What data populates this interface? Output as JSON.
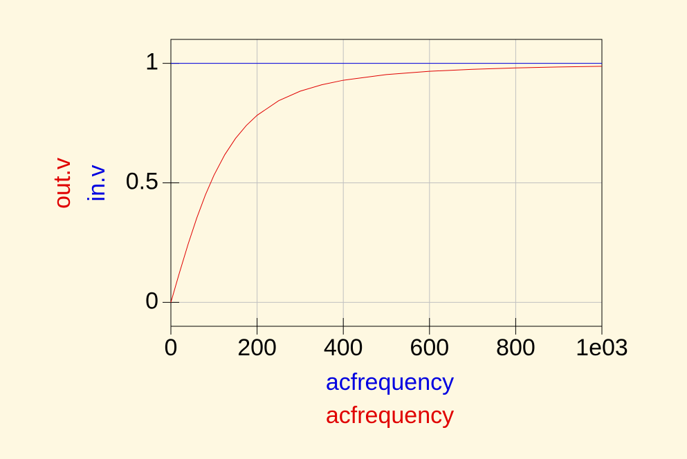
{
  "chart_data": {
    "type": "line",
    "x": [
      0,
      10,
      20,
      40,
      60,
      80,
      100,
      125,
      150,
      175,
      200,
      250,
      300,
      350,
      400,
      500,
      600,
      700,
      800,
      900,
      1000
    ],
    "series": [
      {
        "name": "out.v",
        "color": "#e00000",
        "x_label": "acfrequency",
        "values": [
          0,
          0.0627,
          0.1247,
          0.2438,
          0.3528,
          0.4491,
          0.532,
          0.6177,
          0.6859,
          0.7398,
          0.7825,
          0.8436,
          0.8834,
          0.9103,
          0.9292,
          0.9529,
          0.9666,
          0.9751,
          0.9808,
          0.9847,
          0.9876
        ]
      },
      {
        "name": "in.v",
        "color": "#0000e0",
        "x_label": "acfrequency",
        "values": [
          1,
          1,
          1,
          1,
          1,
          1,
          1,
          1,
          1,
          1,
          1,
          1,
          1,
          1,
          1,
          1,
          1,
          1,
          1,
          1,
          1
        ]
      }
    ],
    "xlim": [
      0,
      1000
    ],
    "xticks": [
      0,
      200,
      400,
      600,
      800,
      {
        "value": 1000,
        "label": "1e03"
      }
    ],
    "ylim": [
      -0.1,
      1.1
    ],
    "yticks": [
      0,
      0.5,
      1
    ],
    "grid": true
  }
}
